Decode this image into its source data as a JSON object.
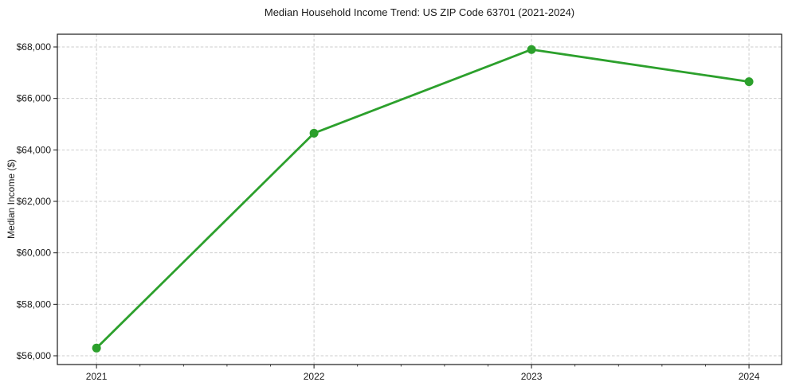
{
  "chart_data": {
    "type": "line",
    "title": "Median Household Income Trend: US ZIP Code 63701 (2021-2024)",
    "xlabel": "",
    "ylabel": "Median Income ($)",
    "x": [
      2021,
      2022,
      2023,
      2024
    ],
    "x_tick_labels": [
      "2021",
      "2022",
      "2023",
      "2024"
    ],
    "series": [
      {
        "values": [
          56300,
          64650,
          67900,
          66650
        ],
        "color": "#2ca02c",
        "marker": "circle"
      }
    ],
    "y_ticks": [
      56000,
      58000,
      60000,
      62000,
      64000,
      66000,
      68000
    ],
    "y_tick_labels": [
      "$56,000",
      "$58,000",
      "$60,000",
      "$62,000",
      "$64,000",
      "$66,000",
      "$68,000"
    ],
    "xlim": [
      2020.82,
      2024.15
    ],
    "ylim": [
      55660,
      68495
    ],
    "x_minor_tick_step": 0.2,
    "grid": true,
    "grid_style": "dashed",
    "legend": false,
    "colors": {
      "line": "#2ca02c",
      "grid": "#cdcdcd",
      "spine": "#1a1a1a",
      "tick_text": "#1a1a1a",
      "background": "#ffffff"
    }
  }
}
